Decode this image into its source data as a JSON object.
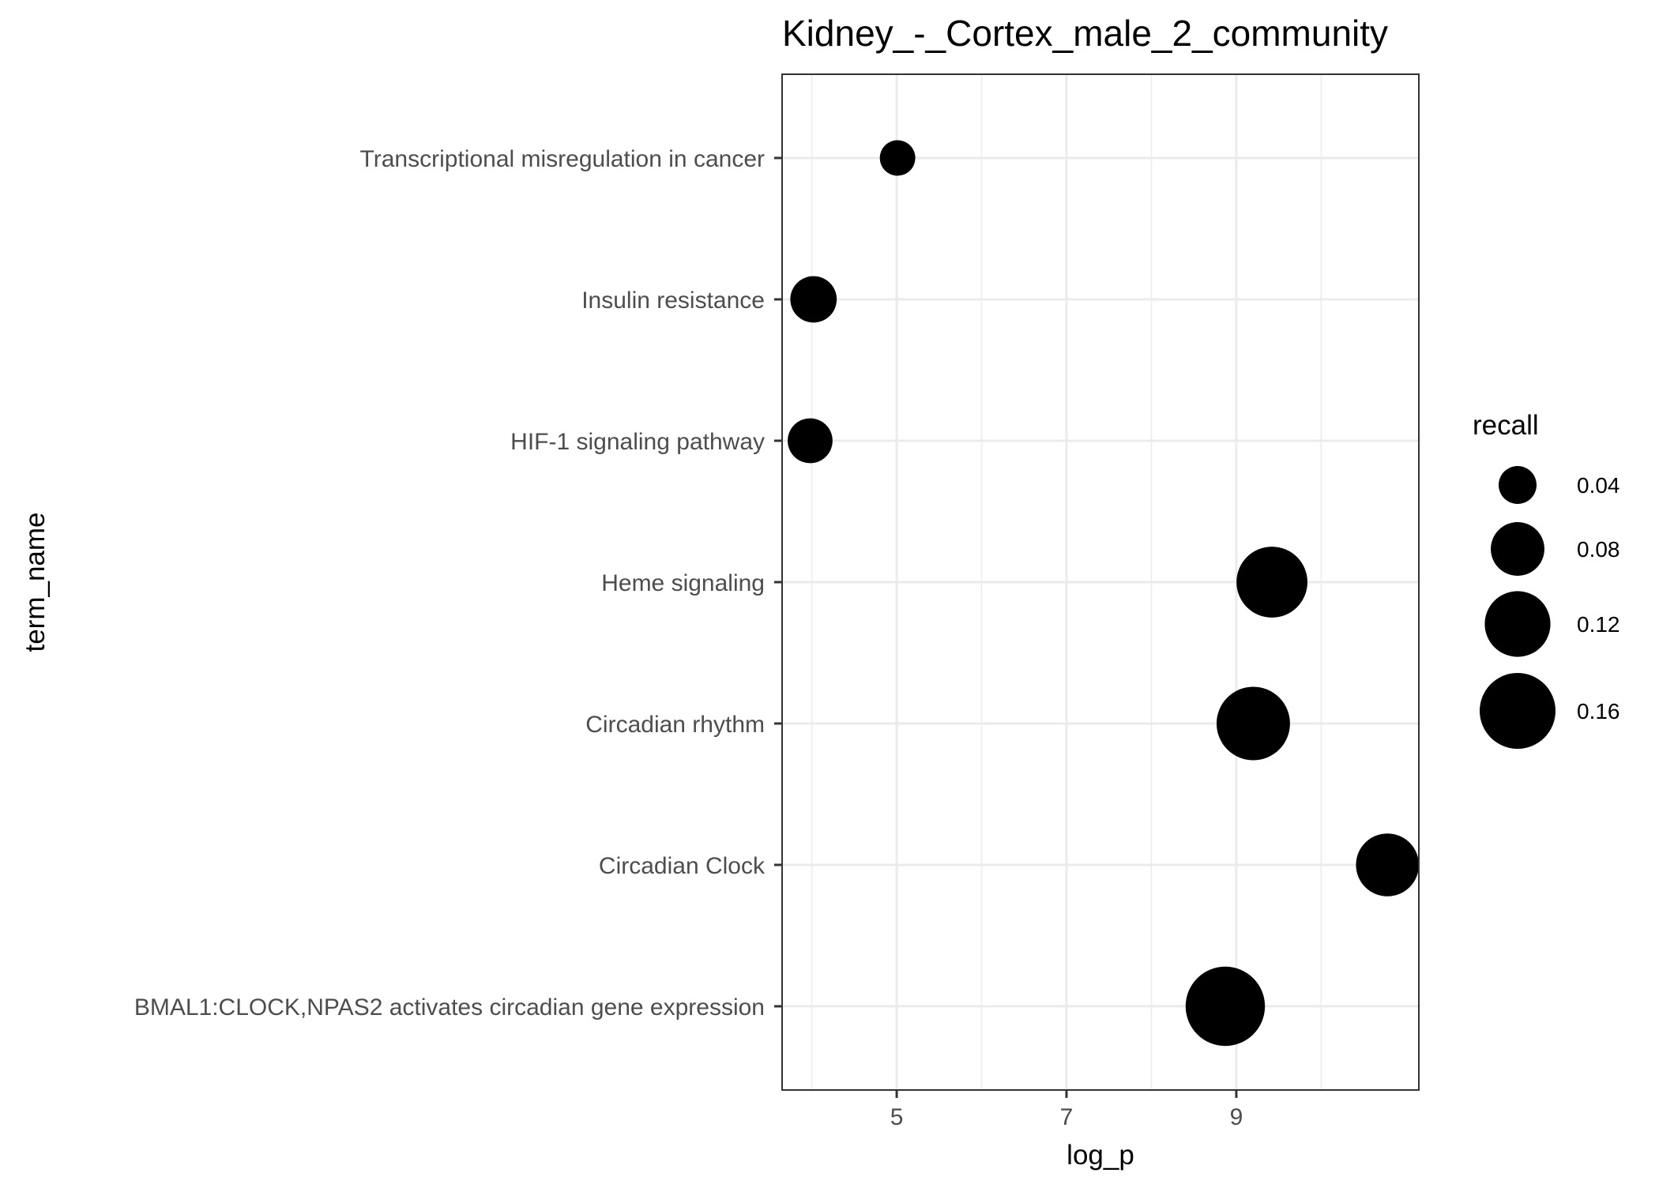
{
  "chart_data": {
    "type": "scatter",
    "title": "Kidney_-_Cortex_male_2_community",
    "xlabel": "log_p",
    "ylabel": "term_name",
    "xlim": [
      3.65,
      11.15
    ],
    "x_ticks": [
      5,
      7,
      9
    ],
    "x_tick_labels": [
      "5",
      "7",
      "9"
    ],
    "x_minor_ticks": [
      4,
      6,
      8,
      10
    ],
    "grid": true,
    "categories": [
      "Transcriptional misregulation in cancer",
      "Insulin resistance",
      "HIF-1 signaling pathway",
      "Heme signaling",
      "Circadian rhythm",
      "Circadian Clock",
      "BMAL1:CLOCK,NPAS2 activates circadian gene expression"
    ],
    "series": [
      {
        "points": [
          {
            "term": "Transcriptional misregulation in cancer",
            "log_p": 5.01,
            "recall": 0.035
          },
          {
            "term": "Insulin resistance",
            "log_p": 4.02,
            "recall": 0.06
          },
          {
            "term": "HIF-1 signaling pathway",
            "log_p": 3.98,
            "recall": 0.056
          },
          {
            "term": "Heme signaling",
            "log_p": 9.42,
            "recall": 0.14
          },
          {
            "term": "Circadian rhythm",
            "log_p": 9.2,
            "recall": 0.15
          },
          {
            "term": "Circadian Clock",
            "log_p": 10.78,
            "recall": 0.11
          },
          {
            "term": "BMAL1:CLOCK,NPAS2 activates circadian gene expression",
            "log_p": 8.87,
            "recall": 0.175
          }
        ]
      }
    ],
    "size_variable": "recall",
    "legend": {
      "title": "recall",
      "position": "right",
      "entries": [
        {
          "label": "0.04",
          "value": 0.04
        },
        {
          "label": "0.08",
          "value": 0.08
        },
        {
          "label": "0.12",
          "value": 0.12
        },
        {
          "label": "0.16",
          "value": 0.16
        }
      ]
    },
    "colors": {
      "point": "#000000",
      "grid": "#ebebeb",
      "panel_border": "#333333",
      "tick_label": "#4d4d4d"
    }
  }
}
